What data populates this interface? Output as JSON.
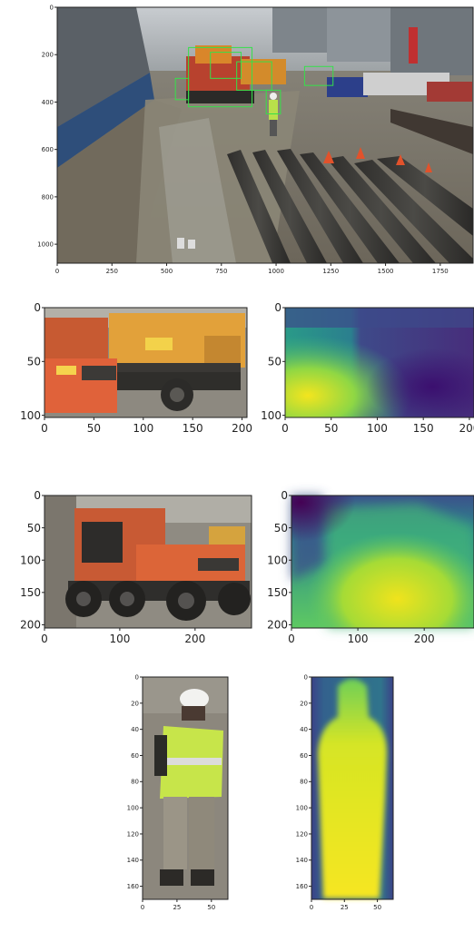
{
  "chart_data": [
    {
      "id": "scene",
      "type": "image",
      "image": "construction-site-scene",
      "xticks": [
        0,
        250,
        500,
        750,
        1000,
        1250,
        1500,
        1750
      ],
      "yticks": [
        0,
        200,
        400,
        600,
        800,
        1000
      ],
      "xlim": [
        0,
        1900
      ],
      "ylim": [
        0,
        1080
      ],
      "detection_boxes": [
        {
          "class": "excavator",
          "x0": 600,
          "y0": 170,
          "x1": 890,
          "y1": 420
        },
        {
          "class": "vehicle",
          "x0": 700,
          "y0": 190,
          "x1": 840,
          "y1": 300
        },
        {
          "class": "vehicle",
          "x0": 820,
          "y0": 230,
          "x1": 980,
          "y1": 350
        },
        {
          "class": "worker",
          "x0": 955,
          "y0": 350,
          "x1": 1020,
          "y1": 450
        },
        {
          "class": "vehicle",
          "x0": 1130,
          "y0": 250,
          "x1": 1260,
          "y1": 330
        },
        {
          "class": "worker",
          "x0": 540,
          "y0": 300,
          "x1": 600,
          "y1": 390
        }
      ]
    },
    {
      "id": "crop-1",
      "type": "image",
      "image": "excavator-crop-rgb",
      "xticks": [
        0,
        50,
        100,
        150,
        200
      ],
      "yticks": [
        0,
        50,
        100
      ],
      "xlim": [
        0,
        205
      ],
      "ylim": [
        0,
        102
      ]
    },
    {
      "id": "crop-1-depth",
      "type": "heatmap",
      "colormap": "viridis",
      "image": "excavator-crop-depth",
      "xticks": [
        0,
        50,
        100,
        150,
        200
      ],
      "yticks": [
        0,
        50,
        100
      ],
      "xlim": [
        0,
        205
      ],
      "ylim": [
        0,
        102
      ]
    },
    {
      "id": "crop-2",
      "type": "image",
      "image": "wheeled-excavator-crop-rgb",
      "xticks": [
        0,
        100,
        200
      ],
      "yticks": [
        0,
        50,
        100,
        150,
        200
      ],
      "xlim": [
        0,
        275
      ],
      "ylim": [
        0,
        205
      ]
    },
    {
      "id": "crop-2-depth",
      "type": "heatmap",
      "colormap": "viridis",
      "image": "wheeled-excavator-crop-depth",
      "xticks": [
        0,
        100,
        200
      ],
      "yticks": [
        0,
        50,
        100,
        150,
        200
      ],
      "xlim": [
        0,
        275
      ],
      "ylim": [
        0,
        205
      ]
    },
    {
      "id": "crop-3",
      "type": "image",
      "image": "worker-crop-rgb",
      "xticks": [
        0,
        25,
        50
      ],
      "yticks": [
        0,
        20,
        40,
        60,
        80,
        100,
        120,
        140,
        160
      ],
      "xlim": [
        0,
        62
      ],
      "ylim": [
        0,
        170
      ]
    },
    {
      "id": "crop-3-depth",
      "type": "heatmap",
      "colormap": "viridis",
      "image": "worker-crop-depth",
      "xticks": [
        0,
        25,
        50
      ],
      "yticks": [
        0,
        20,
        40,
        60,
        80,
        100,
        120,
        140,
        160
      ],
      "xlim": [
        0,
        62
      ],
      "ylim": [
        0,
        170
      ]
    }
  ]
}
